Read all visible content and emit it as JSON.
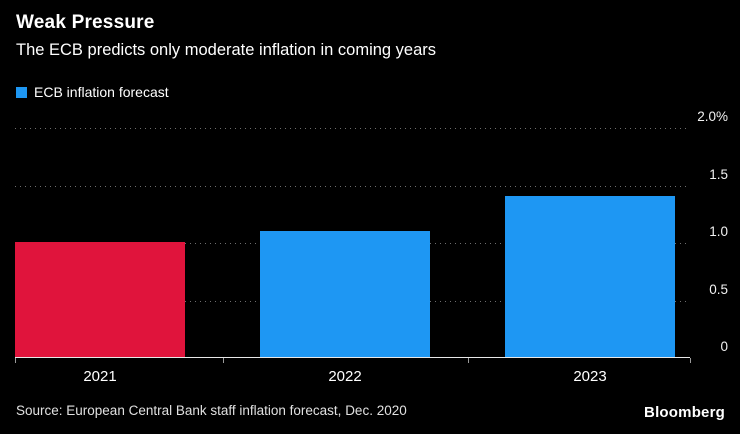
{
  "header": {
    "title": "Weak Pressure",
    "subtitle": "The ECB predicts only moderate inflation in coming years"
  },
  "legend": {
    "label": "ECB inflation forecast",
    "swatch_color": "#1e97f3"
  },
  "chart_data": {
    "type": "bar",
    "title": "Weak Pressure",
    "subtitle": "The ECB predicts only moderate inflation in coming years",
    "categories": [
      "2021",
      "2022",
      "2023"
    ],
    "values": [
      1.0,
      1.1,
      1.4
    ],
    "bar_colors": [
      "#e0143c",
      "#1e97f3",
      "#1e97f3"
    ],
    "xlabel": "",
    "ylabel": "",
    "ylim": [
      0,
      2.0
    ],
    "yticks": [
      0,
      0.5,
      1.0,
      1.5,
      2.0
    ],
    "ytick_labels": [
      "0",
      "0.5",
      "1.0",
      "1.5",
      "2.0%"
    ],
    "grid": "dotted horizontal gridlines, y-axis labels on right",
    "legend_entries": [
      "ECB inflation forecast"
    ],
    "legend_position": "top-left",
    "background_color": "#000000"
  },
  "footer": {
    "source": "Source: European Central Bank staff inflation forecast, Dec. 2020",
    "brand": "Bloomberg"
  }
}
